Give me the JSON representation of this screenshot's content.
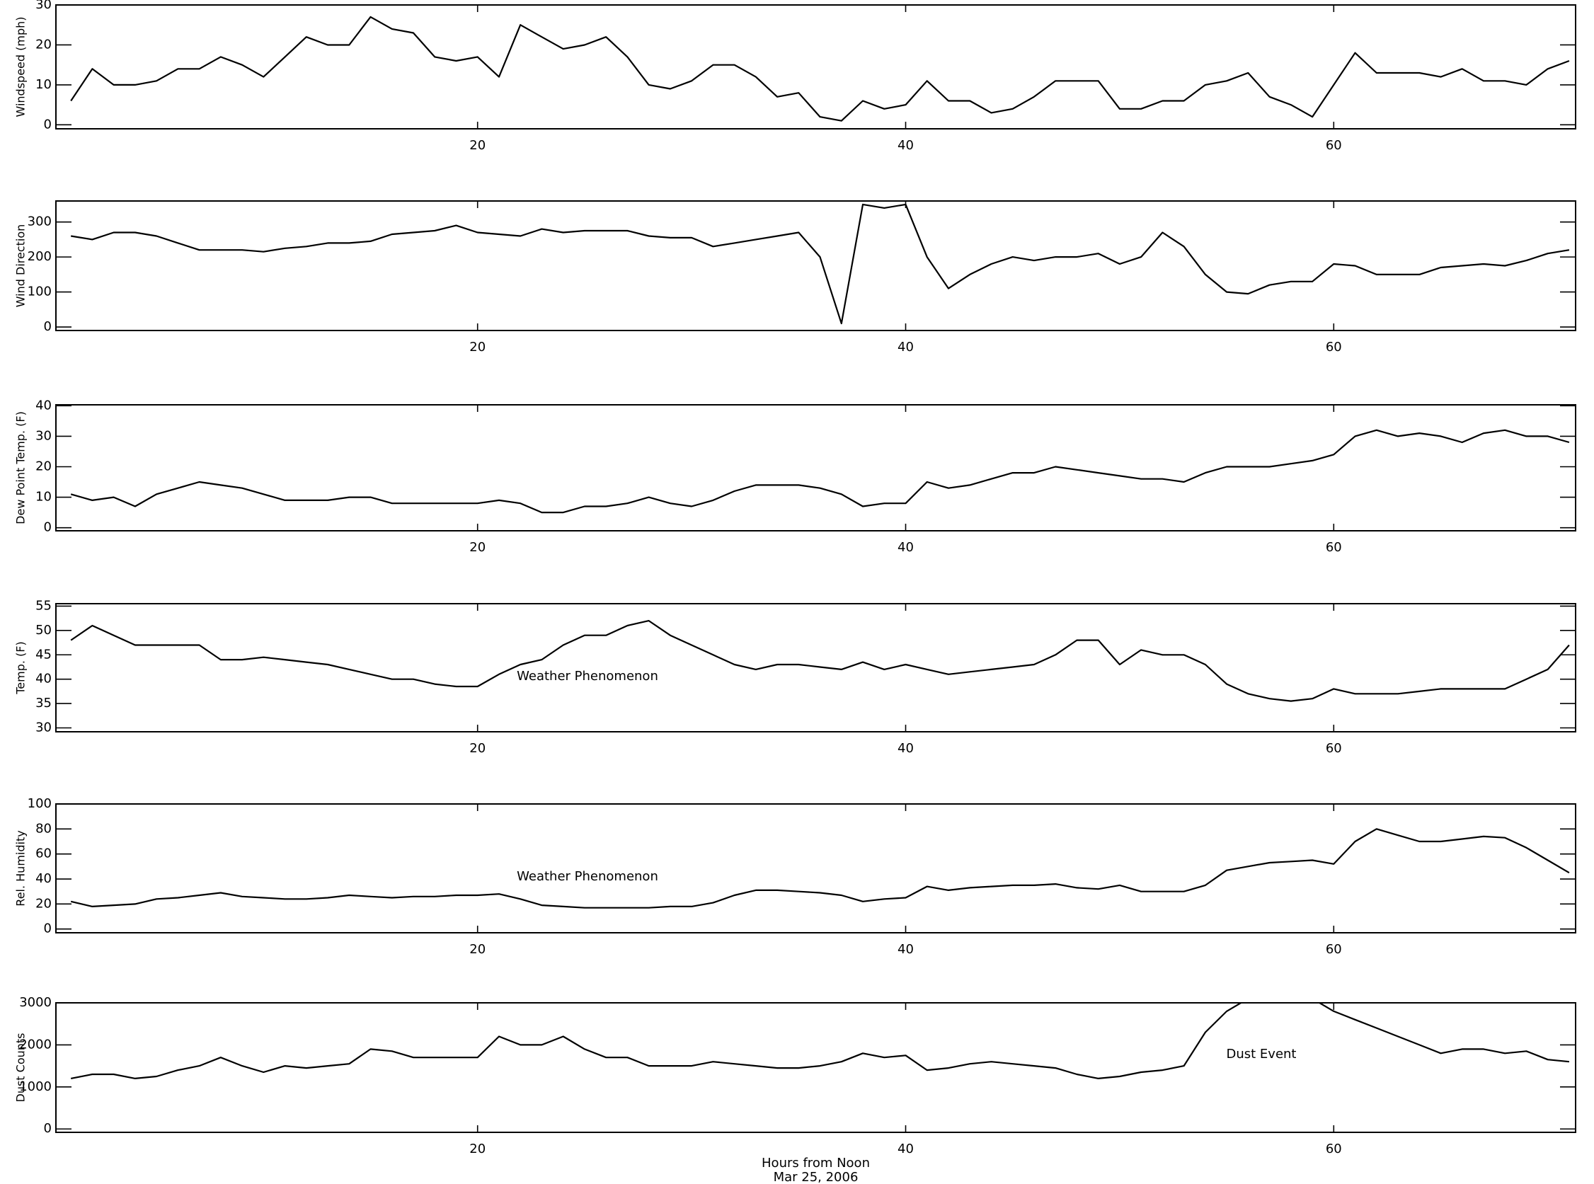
{
  "chart_data": [
    {
      "type": "line",
      "ylabel": "Windspeed (mph)",
      "color": "#000000",
      "x": [
        1,
        2,
        3,
        4,
        5,
        6,
        7,
        8,
        9,
        10,
        11,
        12,
        13,
        14,
        15,
        16,
        17,
        18,
        19,
        20,
        21,
        22,
        23,
        24,
        25,
        26,
        27,
        28,
        29,
        30,
        31,
        32,
        33,
        34,
        35,
        36,
        37,
        38,
        39,
        40,
        41,
        42,
        43,
        44,
        45,
        46,
        47,
        48,
        49,
        50,
        51,
        52,
        53,
        54,
        55,
        56,
        57,
        58,
        59,
        60,
        61,
        62,
        63,
        64,
        65,
        66,
        67,
        68,
        69,
        70,
        71
      ],
      "values": [
        6,
        14,
        10,
        10,
        11,
        14,
        14,
        17,
        15,
        12,
        17,
        22,
        20,
        20,
        27,
        24,
        23,
        17,
        16,
        17,
        12,
        25,
        22,
        19,
        20,
        22,
        17,
        10,
        9,
        11,
        15,
        15,
        12,
        7,
        8,
        2,
        1,
        6,
        4,
        5,
        11,
        6,
        6,
        3,
        4,
        7,
        11,
        11,
        11,
        4,
        4,
        6,
        6,
        10,
        11,
        13,
        7,
        5,
        2,
        10,
        18,
        13,
        13,
        13,
        12,
        14,
        11,
        11,
        10,
        14,
        16
      ],
      "xlim": [
        0.3,
        71.3
      ],
      "xticks": [
        20,
        40,
        60
      ],
      "ylim": [
        -1,
        30
      ],
      "yticks": [
        0,
        10,
        20,
        30
      ]
    },
    {
      "type": "line",
      "ylabel": "Wind Direction",
      "color": "#000000",
      "x": [
        1,
        2,
        3,
        4,
        5,
        6,
        7,
        8,
        9,
        10,
        11,
        12,
        13,
        14,
        15,
        16,
        17,
        18,
        19,
        20,
        21,
        22,
        23,
        24,
        25,
        26,
        27,
        28,
        29,
        30,
        31,
        32,
        33,
        34,
        35,
        36,
        37,
        38,
        39,
        40,
        41,
        42,
        43,
        44,
        45,
        46,
        47,
        48,
        49,
        50,
        51,
        52,
        53,
        54,
        55,
        56,
        57,
        58,
        59,
        60,
        61,
        62,
        63,
        64,
        65,
        66,
        67,
        68,
        69,
        70,
        71
      ],
      "values": [
        260,
        250,
        270,
        270,
        260,
        240,
        220,
        220,
        220,
        215,
        225,
        230,
        240,
        240,
        245,
        265,
        270,
        275,
        290,
        270,
        265,
        260,
        280,
        270,
        275,
        275,
        275,
        260,
        255,
        255,
        230,
        240,
        250,
        260,
        270,
        200,
        10,
        350,
        340,
        350,
        200,
        110,
        150,
        180,
        200,
        190,
        200,
        200,
        210,
        180,
        200,
        270,
        230,
        150,
        100,
        95,
        120,
        130,
        130,
        180,
        175,
        150,
        150,
        150,
        170,
        175,
        180,
        175,
        190,
        210,
        220
      ],
      "xlim": [
        0.3,
        71.3
      ],
      "xticks": [
        20,
        40,
        60
      ],
      "ylim": [
        -10,
        360
      ],
      "yticks": [
        0,
        100,
        200,
        300
      ]
    },
    {
      "type": "line",
      "ylabel": "Dew Point Temp. (F)",
      "color": "#000000",
      "x": [
        1,
        2,
        3,
        4,
        5,
        6,
        7,
        8,
        9,
        10,
        11,
        12,
        13,
        14,
        15,
        16,
        17,
        18,
        19,
        20,
        21,
        22,
        23,
        24,
        25,
        26,
        27,
        28,
        29,
        30,
        31,
        32,
        33,
        34,
        35,
        36,
        37,
        38,
        39,
        40,
        41,
        42,
        43,
        44,
        45,
        46,
        47,
        48,
        49,
        50,
        51,
        52,
        53,
        54,
        55,
        56,
        57,
        58,
        59,
        60,
        61,
        62,
        63,
        64,
        65,
        66,
        67,
        68,
        69,
        70,
        71
      ],
      "values": [
        11,
        9,
        10,
        7,
        11,
        13,
        15,
        14,
        13,
        11,
        9,
        9,
        9,
        10,
        10,
        8,
        8,
        8,
        8,
        8,
        9,
        8,
        5,
        5,
        7,
        7,
        8,
        10,
        8,
        7,
        9,
        12,
        14,
        14,
        14,
        13,
        11,
        7,
        8,
        8,
        15,
        13,
        14,
        16,
        18,
        18,
        20,
        19,
        18,
        17,
        16,
        16,
        15,
        18,
        20,
        20,
        20,
        21,
        22,
        24,
        30,
        32,
        30,
        31,
        30,
        28,
        31,
        32,
        30,
        30,
        28
      ],
      "xlim": [
        0.3,
        71.3
      ],
      "xticks": [
        20,
        40,
        60
      ],
      "ylim": [
        -1,
        40.3
      ],
      "yticks": [
        0,
        10,
        20,
        30,
        40
      ]
    },
    {
      "type": "line",
      "ylabel": "Temp. (F)",
      "annotation": "Weather Phenomenon",
      "color": "#000000",
      "x": [
        1,
        2,
        3,
        4,
        5,
        6,
        7,
        8,
        9,
        10,
        11,
        12,
        13,
        14,
        15,
        16,
        17,
        18,
        19,
        20,
        21,
        22,
        23,
        24,
        25,
        26,
        27,
        28,
        29,
        30,
        31,
        32,
        33,
        34,
        35,
        36,
        37,
        38,
        39,
        40,
        41,
        42,
        43,
        44,
        45,
        46,
        47,
        48,
        49,
        50,
        51,
        52,
        53,
        54,
        55,
        56,
        57,
        58,
        59,
        60,
        61,
        62,
        63,
        64,
        65,
        66,
        67,
        68,
        69,
        70,
        71
      ],
      "values": [
        48,
        51,
        49,
        47,
        47,
        47,
        47,
        44,
        44,
        44.5,
        44,
        43.5,
        43,
        42,
        41,
        40,
        40,
        39,
        38.5,
        38.5,
        41,
        43,
        44,
        47,
        49,
        49,
        51,
        52,
        49,
        47,
        45,
        43,
        42,
        43,
        43,
        42.5,
        42,
        43.5,
        42,
        43,
        42,
        41,
        41.5,
        42,
        42.5,
        43,
        45,
        48,
        48,
        43,
        46,
        45,
        45,
        43,
        39,
        37,
        36,
        35.5,
        36,
        38,
        37,
        37,
        37,
        37.5,
        38,
        38,
        38,
        38,
        40,
        42,
        47
      ],
      "xlim": [
        0.3,
        71.3
      ],
      "xticks": [
        20,
        40,
        60
      ],
      "ylim": [
        29.2,
        55.5
      ],
      "yticks": [
        30,
        35,
        40,
        45,
        50,
        55
      ]
    },
    {
      "type": "line",
      "ylabel": "Rel. Humidity",
      "annotation": "Weather Phenomenon",
      "color": "#000000",
      "x": [
        1,
        2,
        3,
        4,
        5,
        6,
        7,
        8,
        9,
        10,
        11,
        12,
        13,
        14,
        15,
        16,
        17,
        18,
        19,
        20,
        21,
        22,
        23,
        24,
        25,
        26,
        27,
        28,
        29,
        30,
        31,
        32,
        33,
        34,
        35,
        36,
        37,
        38,
        39,
        40,
        41,
        42,
        43,
        44,
        45,
        46,
        47,
        48,
        49,
        50,
        51,
        52,
        53,
        54,
        55,
        56,
        57,
        58,
        59,
        60,
        61,
        62,
        63,
        64,
        65,
        66,
        67,
        68,
        69,
        70,
        71
      ],
      "values": [
        22,
        18,
        19,
        20,
        24,
        25,
        27,
        29,
        26,
        25,
        24,
        24,
        25,
        27,
        26,
        25,
        26,
        26,
        27,
        27,
        28,
        24,
        19,
        18,
        17,
        17,
        17,
        17,
        18,
        18,
        21,
        27,
        31,
        31,
        30,
        29,
        27,
        22,
        24,
        25,
        34,
        31,
        33,
        34,
        35,
        35,
        36,
        33,
        32,
        35,
        30,
        30,
        30,
        35,
        47,
        50,
        53,
        54,
        55,
        52,
        70,
        80,
        75,
        70,
        70,
        72,
        74,
        73,
        65,
        55,
        45
      ],
      "xlim": [
        0.3,
        71.3
      ],
      "xticks": [
        20,
        40,
        60
      ],
      "ylim": [
        -3,
        100
      ],
      "yticks": [
        0,
        20,
        40,
        60,
        80,
        100
      ]
    },
    {
      "type": "line",
      "ylabel": "Dust Counts",
      "annotation": "Dust Event",
      "xlabel": [
        "Hours from Noon",
        "Mar 25, 2006"
      ],
      "color": "#000000",
      "x": [
        1,
        2,
        3,
        4,
        5,
        6,
        7,
        8,
        9,
        10,
        11,
        12,
        13,
        14,
        15,
        16,
        17,
        18,
        19,
        20,
        21,
        22,
        23,
        24,
        25,
        26,
        27,
        28,
        29,
        30,
        31,
        32,
        33,
        34,
        35,
        36,
        37,
        38,
        39,
        40,
        41,
        42,
        43,
        44,
        45,
        46,
        47,
        48,
        49,
        50,
        51,
        52,
        53,
        54,
        55,
        56,
        57,
        58,
        59,
        60,
        61,
        62,
        63,
        64,
        65,
        66,
        67,
        68,
        69,
        70,
        71
      ],
      "values": [
        1200,
        1300,
        1300,
        1200,
        1250,
        1400,
        1500,
        1700,
        1500,
        1350,
        1500,
        1450,
        1500,
        1550,
        1900,
        1850,
        1700,
        1700,
        1700,
        1700,
        2200,
        2000,
        2000,
        2200,
        1900,
        1700,
        1700,
        1500,
        1500,
        1500,
        1600,
        1550,
        1500,
        1450,
        1450,
        1500,
        1600,
        1800,
        1700,
        1750,
        1400,
        1450,
        1550,
        1600,
        1550,
        1500,
        1450,
        1300,
        1200,
        1250,
        1350,
        1400,
        1500,
        2300,
        2800,
        3100,
        3100,
        3100,
        3100,
        2800,
        2600,
        2400,
        2200,
        2000,
        1800,
        1900,
        1900,
        1800,
        1850,
        1650,
        1600
      ],
      "xlim": [
        0.3,
        71.3
      ],
      "xticks": [
        20,
        40,
        60
      ],
      "ylim": [
        -80,
        3000
      ],
      "yticks": [
        0,
        1000,
        2000,
        3000
      ]
    }
  ]
}
